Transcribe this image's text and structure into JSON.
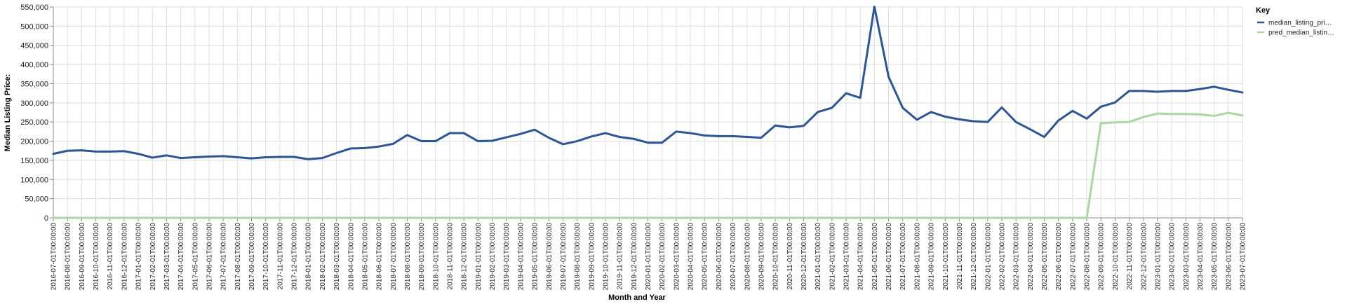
{
  "chart_data": {
    "type": "line",
    "x": [
      "2016-07-01T00:00:00",
      "2016-08-01T00:00:00",
      "2016-09-01T00:00:00",
      "2016-10-01T00:00:00",
      "2016-11-01T00:00:00",
      "2016-12-01T00:00:00",
      "2017-01-01T00:00:00",
      "2017-02-01T00:00:00",
      "2017-03-01T00:00:00",
      "2017-04-01T00:00:00",
      "2017-05-01T00:00:00",
      "2017-06-01T00:00:00",
      "2017-07-01T00:00:00",
      "2017-08-01T00:00:00",
      "2017-09-01T00:00:00",
      "2017-10-01T00:00:00",
      "2017-11-01T00:00:00",
      "2017-12-01T00:00:00",
      "2018-01-01T00:00:00",
      "2018-02-01T00:00:00",
      "2018-03-01T00:00:00",
      "2018-04-01T00:00:00",
      "2018-05-01T00:00:00",
      "2018-06-01T00:00:00",
      "2018-07-01T00:00:00",
      "2018-08-01T00:00:00",
      "2018-09-01T00:00:00",
      "2018-10-01T00:00:00",
      "2018-11-01T00:00:00",
      "2018-12-01T00:00:00",
      "2019-01-01T00:00:00",
      "2019-02-01T00:00:00",
      "2019-03-01T00:00:00",
      "2019-04-01T00:00:00",
      "2019-05-01T00:00:00",
      "2019-06-01T00:00:00",
      "2019-07-01T00:00:00",
      "2019-08-01T00:00:00",
      "2019-09-01T00:00:00",
      "2019-10-01T00:00:00",
      "2019-11-01T00:00:00",
      "2019-12-01T00:00:00",
      "2020-01-01T00:00:00",
      "2020-02-01T00:00:00",
      "2020-03-01T00:00:00",
      "2020-04-01T00:00:00",
      "2020-05-01T00:00:00",
      "2020-06-01T00:00:00",
      "2020-07-01T00:00:00",
      "2020-08-01T00:00:00",
      "2020-09-01T00:00:00",
      "2020-10-01T00:00:00",
      "2020-11-01T00:00:00",
      "2020-12-01T00:00:00",
      "2021-01-01T00:00:00",
      "2021-02-01T00:00:00",
      "2021-03-01T00:00:00",
      "2021-04-01T00:00:00",
      "2021-05-01T00:00:00",
      "2021-06-01T00:00:00",
      "2021-07-01T00:00:00",
      "2021-08-01T00:00:00",
      "2021-09-01T00:00:00",
      "2021-10-01T00:00:00",
      "2021-11-01T00:00:00",
      "2021-12-01T00:00:00",
      "2022-01-01T00:00:00",
      "2022-02-01T00:00:00",
      "2022-03-01T00:00:00",
      "2022-04-01T00:00:00",
      "2022-05-01T00:00:00",
      "2022-06-01T00:00:00",
      "2022-07-01T00:00:00",
      "2022-08-01T00:00:00",
      "2022-09-01T00:00:00",
      "2022-10-01T00:00:00",
      "2022-11-01T00:00:00",
      "2022-12-01T00:00:00",
      "2023-01-01T00:00:00",
      "2023-02-01T00:00:00",
      "2023-03-01T00:00:00",
      "2023-04-01T00:00:00",
      "2023-05-01T00:00:00",
      "2023-06-01T00:00:00",
      "2023-07-01T00:00:00"
    ],
    "series": [
      {
        "name": "median_listing_pri…",
        "color": "#2a5599",
        "values": [
          167000,
          175000,
          176000,
          173000,
          173000,
          174000,
          167000,
          157000,
          163000,
          156000,
          158000,
          160000,
          161000,
          158000,
          155000,
          158000,
          159000,
          159000,
          153000,
          156000,
          169000,
          181000,
          182000,
          186000,
          193000,
          216000,
          200000,
          200000,
          221000,
          221000,
          200000,
          201000,
          210000,
          219000,
          230000,
          209000,
          192000,
          200000,
          212000,
          221000,
          211000,
          206000,
          196000,
          196000,
          225000,
          221000,
          215000,
          213000,
          213000,
          211000,
          209000,
          241000,
          236000,
          240000,
          276000,
          287000,
          325000,
          313000,
          551000,
          368000,
          287000,
          256000,
          276000,
          264000,
          257000,
          252000,
          250000,
          288000,
          250000,
          231000,
          211000,
          254000,
          279000,
          259000,
          290000,
          301000,
          331000,
          331000,
          329000,
          331000,
          331000,
          336000,
          342000,
          334000,
          327000
        ]
      },
      {
        "name": "pred_median_listin…",
        "color": "#a8d8a0",
        "values": [
          0,
          0,
          0,
          0,
          0,
          0,
          0,
          0,
          0,
          0,
          0,
          0,
          0,
          0,
          0,
          0,
          0,
          0,
          0,
          0,
          0,
          0,
          0,
          0,
          0,
          0,
          0,
          0,
          0,
          0,
          0,
          0,
          0,
          0,
          0,
          0,
          0,
          0,
          0,
          0,
          0,
          0,
          0,
          0,
          0,
          0,
          0,
          0,
          0,
          0,
          0,
          0,
          0,
          0,
          0,
          0,
          0,
          0,
          0,
          0,
          0,
          0,
          0,
          0,
          0,
          0,
          0,
          0,
          0,
          0,
          0,
          0,
          0,
          0,
          247000,
          249000,
          250000,
          263000,
          272000,
          271000,
          271000,
          270000,
          266000,
          274000,
          267000
        ]
      }
    ],
    "xlabel": "Month and Year",
    "ylabel": "Median Listing Price:",
    "ylim": [
      0,
      550000
    ],
    "yticks": [
      0,
      50000,
      100000,
      150000,
      200000,
      250000,
      300000,
      350000,
      400000,
      450000,
      500000,
      550000
    ],
    "grid": true,
    "legend": {
      "title": "Key",
      "placement": "right"
    }
  }
}
